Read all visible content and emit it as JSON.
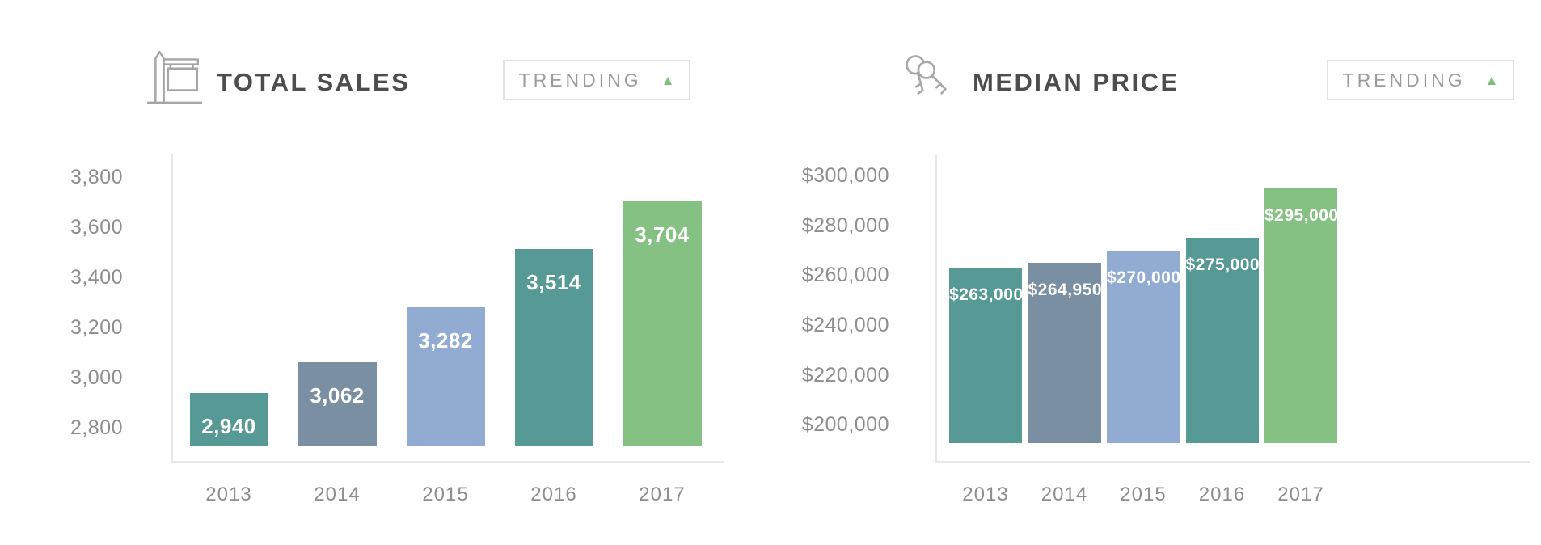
{
  "chart_data": [
    {
      "type": "bar",
      "title": "TOTAL SALES",
      "icon": "for-sale-sign",
      "badge_label": "TRENDING",
      "trend": "up",
      "trend_color": "#7EBF7A",
      "categories": [
        "2013",
        "2014",
        "2015",
        "2016",
        "2017"
      ],
      "values": [
        2940,
        3062,
        3282,
        3514,
        3704
      ],
      "value_labels": [
        "2,940",
        "3,062",
        "3,282",
        "3,514",
        "3,704"
      ],
      "bar_colors": [
        "#579994",
        "#7A8FA2",
        "#91ABD3",
        "#579994",
        "#84C183"
      ],
      "yticks": [
        3800,
        3600,
        3400,
        3200,
        3000,
        2800
      ],
      "ytick_labels": [
        "3,800",
        "3,600",
        "3,400",
        "3,200",
        "3,000",
        "2,800"
      ],
      "ylim": [
        2668,
        3894
      ],
      "bar_base_value": 2726,
      "xlabel": "",
      "ylabel": "",
      "grid": false,
      "legend": false
    },
    {
      "type": "bar",
      "title": "MEDIAN PRICE",
      "icon": "keys",
      "badge_label": "TRENDING",
      "trend": "up",
      "trend_color": "#7EBF7A",
      "categories": [
        "2013",
        "2014",
        "2015",
        "2016",
        "2017"
      ],
      "values": [
        263000,
        264950,
        270000,
        275000,
        295000
      ],
      "value_labels": [
        "$263,000",
        "$264,950",
        "$270,000",
        "$275,000",
        "$295,000"
      ],
      "bar_colors": [
        "#579994",
        "#7A8FA2",
        "#91ABD3",
        "#579994",
        "#84C183"
      ],
      "yticks": [
        300000,
        280000,
        260000,
        240000,
        220000,
        200000
      ],
      "ytick_labels": [
        "$300,000",
        "$280,000",
        "$260,000",
        "$240,000",
        "$220,000",
        "$200,000"
      ],
      "ylim": [
        185400,
        308900
      ],
      "bar_base_value": 192500,
      "xlabel": "",
      "ylabel": "",
      "grid": false,
      "legend": false
    }
  ]
}
